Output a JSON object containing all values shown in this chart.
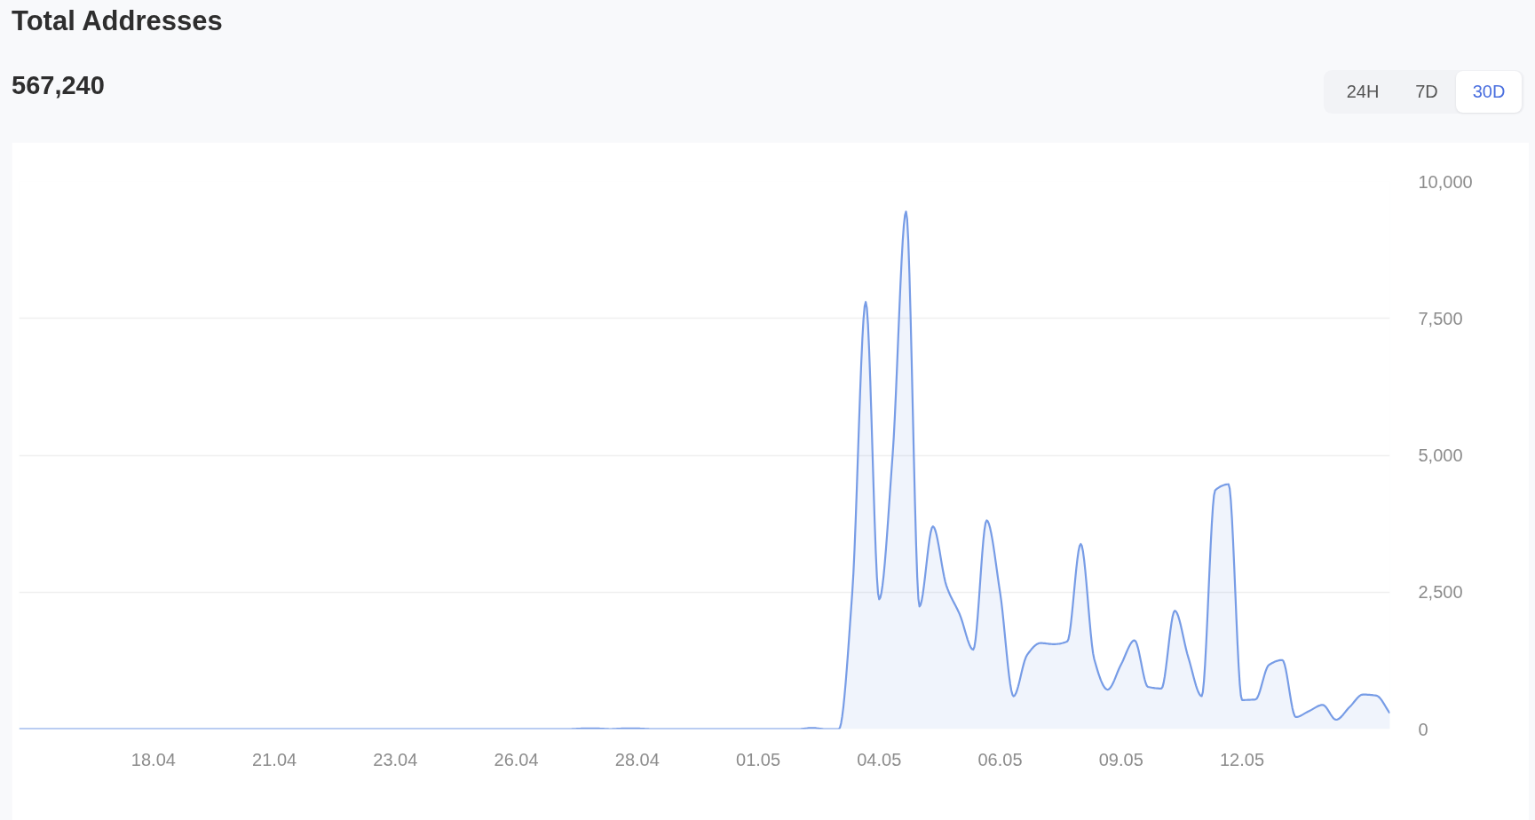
{
  "chart_data": {
    "type": "area",
    "title": "Total Addresses",
    "subtitle": "567,240",
    "annotations": [
      "24H",
      "7D",
      "30D"
    ],
    "categories": [
      null,
      null,
      null,
      null,
      null,
      null,
      null,
      null,
      null,
      null,
      "18.04",
      null,
      null,
      null,
      null,
      null,
      null,
      null,
      null,
      "21.04",
      null,
      null,
      null,
      null,
      null,
      null,
      null,
      null,
      "23.04",
      null,
      null,
      null,
      null,
      null,
      null,
      null,
      null,
      "26.04",
      null,
      null,
      null,
      null,
      null,
      null,
      null,
      null,
      "28.04",
      null,
      null,
      null,
      null,
      null,
      null,
      null,
      null,
      "01.05",
      null,
      null,
      null,
      null,
      null,
      null,
      null,
      null,
      "04.05",
      null,
      null,
      null,
      null,
      null,
      null,
      null,
      null,
      "06.05",
      null,
      null,
      null,
      null,
      null,
      null,
      null,
      null,
      "09.05",
      null,
      null,
      null,
      null,
      null,
      null,
      null,
      null,
      "12.05",
      null,
      null,
      null,
      null,
      null,
      null,
      null,
      null,
      null,
      null,
      null
    ],
    "color": "#779ce6",
    "values": [
      0,
      0,
      0,
      0,
      0,
      0,
      0,
      0,
      0,
      0,
      0,
      0,
      0,
      0,
      0,
      0,
      0,
      0,
      0,
      0,
      0,
      0,
      0,
      0,
      0,
      0,
      0,
      0,
      0,
      0,
      0,
      0,
      0,
      0,
      0,
      0,
      0,
      0,
      0,
      0,
      0,
      0,
      10,
      10,
      0,
      10,
      10,
      0,
      0,
      0,
      0,
      0,
      0,
      0,
      0,
      0,
      0,
      0,
      0,
      20,
      0,
      0,
      2500,
      7800,
      2370,
      5000,
      9450,
      2240,
      3700,
      2620,
      2090,
      1450,
      3810,
      2490,
      600,
      1350,
      1570,
      1550,
      1600,
      3380,
      1280,
      720,
      1180,
      1620,
      770,
      740,
      2160,
      1310,
      600,
      4360,
      4470,
      530,
      540,
      1170,
      1260,
      220,
      330,
      440,
      170,
      400,
      630,
      610,
      290
    ],
    "ylim": [
      0,
      10000
    ],
    "yticks": [
      0,
      {
        "value": 2500,
        "label": "2,500"
      },
      {
        "value": 5000,
        "label": "5,000"
      },
      {
        "value": 7500,
        "label": "7,500"
      },
      {
        "value": 10000,
        "label": "10,000"
      }
    ],
    "grid": "y"
  }
}
